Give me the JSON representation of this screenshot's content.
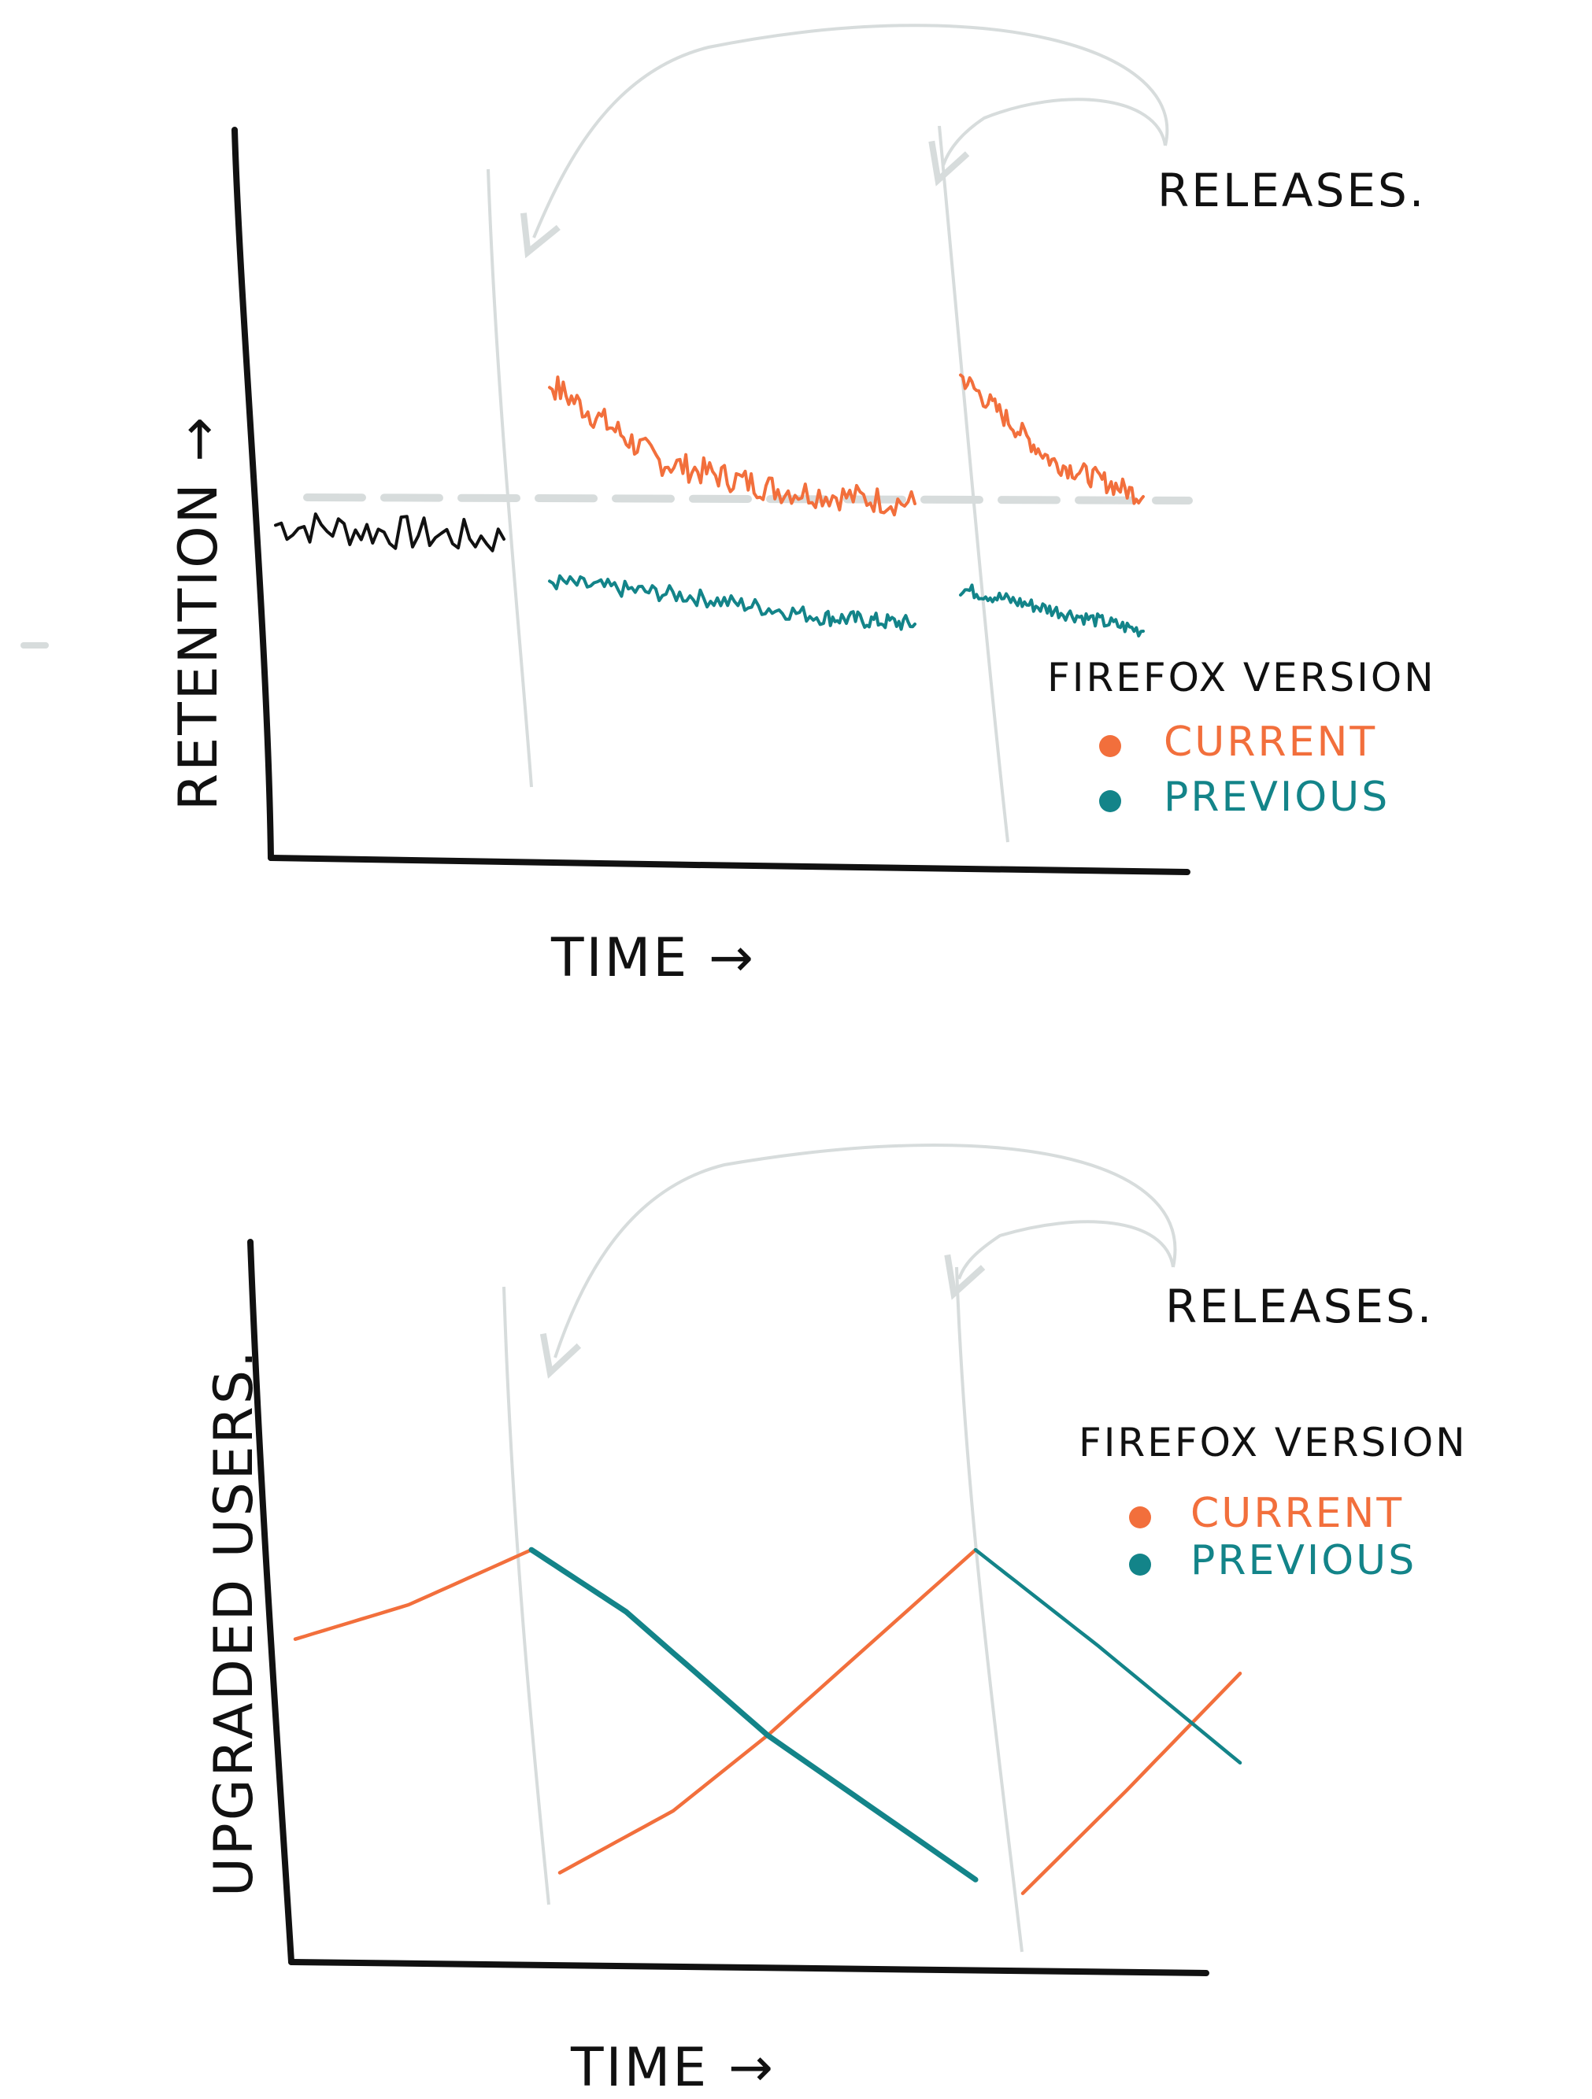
{
  "colors": {
    "current": "#f26f3c",
    "previous": "#138489",
    "pre_release": "#111111",
    "release_line": "#d7dcdc",
    "baseline": "#d7dcdc",
    "axis": "#111111"
  },
  "icons": [
    "curved-arrow-icon",
    "legend-dot-icon"
  ],
  "chart_data": [
    {
      "type": "line",
      "title": "",
      "xlabel": "TIME →",
      "ylabel": "RETENTION →",
      "annotation": "RELEASES.",
      "legend": {
        "title": "FIREFOX VERSION",
        "entries": [
          "CURRENT",
          "PREVIOUS"
        ],
        "placement": "right"
      },
      "releases_x": [
        0.3,
        0.75
      ],
      "baseline_y": 0.4,
      "xlim": [
        0,
        1
      ],
      "ylim": [
        0,
        1
      ],
      "series": [
        {
          "key": "pre_release",
          "x": [
            0.0,
            0.25
          ],
          "values": [
            0.47,
            0.45
          ],
          "noise": 0.025
        },
        {
          "key": "current",
          "x": [
            0.3,
            0.42,
            0.55,
            0.7
          ],
          "values": [
            0.67,
            0.56,
            0.52,
            0.5
          ],
          "noise": 0.02
        },
        {
          "key": "previous",
          "x": [
            0.3,
            0.45,
            0.6,
            0.7
          ],
          "values": [
            0.39,
            0.37,
            0.34,
            0.33
          ],
          "noise": 0.012
        },
        {
          "name": "CURRENT",
          "key": "current",
          "x": [
            0.75,
            0.85,
            0.95
          ],
          "values": [
            0.68,
            0.56,
            0.51
          ],
          "noise": 0.015
        },
        {
          "name": "PREVIOUS",
          "key": "previous",
          "x": [
            0.75,
            0.85,
            0.95
          ],
          "values": [
            0.38,
            0.35,
            0.32
          ],
          "noise": 0.01
        }
      ]
    },
    {
      "type": "line",
      "title": "",
      "xlabel": "TIME →",
      "ylabel": "UPGRADED USERS.",
      "annotation": "RELEASES.",
      "legend": {
        "title": "FIREFOX VERSION",
        "entries": [
          "CURRENT",
          "PREVIOUS"
        ],
        "placement": "right"
      },
      "releases_x": [
        0.25,
        0.72
      ],
      "xlim": [
        0,
        1
      ],
      "ylim": [
        0,
        1
      ],
      "series": [
        {
          "key": "current",
          "x": [
            0.0,
            0.12,
            0.25
          ],
          "values": [
            0.47,
            0.52,
            0.6
          ],
          "noise": 0
        },
        {
          "key": "current",
          "x": [
            0.28,
            0.4,
            0.5,
            0.72
          ],
          "values": [
            0.13,
            0.22,
            0.33,
            0.6
          ],
          "noise": 0
        },
        {
          "key": "previous",
          "x": [
            0.25,
            0.35,
            0.5,
            0.72
          ],
          "values": [
            0.6,
            0.51,
            0.33,
            0.12
          ],
          "noise": 0
        },
        {
          "name": "CURRENT",
          "key": "current",
          "x": [
            0.77,
            0.88,
            1.0
          ],
          "values": [
            0.1,
            0.25,
            0.42
          ],
          "noise": 0
        },
        {
          "name": "PREVIOUS",
          "key": "previous",
          "x": [
            0.72,
            0.85,
            1.0
          ],
          "values": [
            0.6,
            0.46,
            0.29
          ],
          "noise": 0
        }
      ]
    }
  ]
}
